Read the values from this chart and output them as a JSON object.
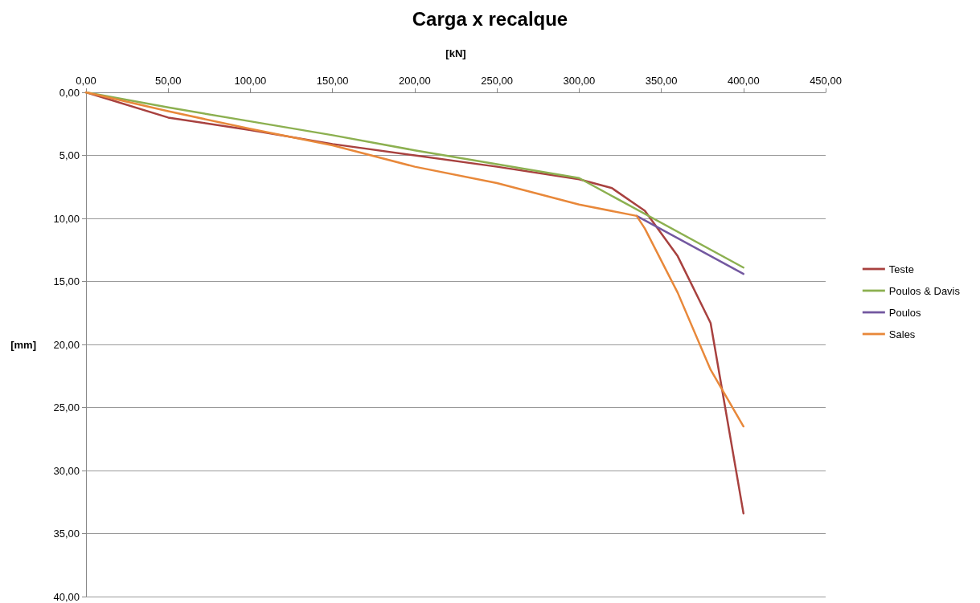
{
  "chart_data": {
    "type": "line",
    "title": "Carga x recalque",
    "xlabel": "[kN]",
    "ylabel": "[mm]",
    "x": [
      0,
      50,
      100,
      150,
      200,
      250,
      300,
      320,
      340,
      360,
      380,
      400
    ],
    "series": [
      {
        "name": "Teste",
        "color": "#a8413f",
        "values": [
          0,
          2.0,
          3.0,
          4.1,
          5.0,
          5.9,
          6.9,
          7.6,
          9.4,
          13.0,
          18.3,
          33.4
        ]
      },
      {
        "name": "Poulos & Davis",
        "color": "#8cb050",
        "x": [
          0,
          50,
          100,
          150,
          200,
          250,
          300,
          400
        ],
        "values": [
          0,
          1.2,
          2.3,
          3.4,
          4.6,
          5.7,
          6.8,
          13.9
        ]
      },
      {
        "name": "Poulos",
        "color": "#7358a0",
        "x": [
          335,
          400
        ],
        "values": [
          9.8,
          14.4
        ]
      },
      {
        "name": "Sales",
        "color": "#e8883a",
        "x": [
          0,
          50,
          100,
          150,
          200,
          250,
          300,
          335,
          340,
          360,
          380,
          400
        ],
        "values": [
          0,
          1.5,
          2.9,
          4.2,
          5.9,
          7.2,
          8.9,
          9.8,
          10.8,
          15.9,
          22.0,
          26.5
        ]
      }
    ],
    "xlim": [
      0,
      450
    ],
    "xticks": [
      {
        "value": 0,
        "label": "0,00"
      },
      {
        "value": 50,
        "label": "50,00"
      },
      {
        "value": 100,
        "label": "100,00"
      },
      {
        "value": 150,
        "label": "150,00"
      },
      {
        "value": 200,
        "label": "200,00"
      },
      {
        "value": 250,
        "label": "250,00"
      },
      {
        "value": 300,
        "label": "300,00"
      },
      {
        "value": 350,
        "label": "350,00"
      },
      {
        "value": 400,
        "label": "400,00"
      },
      {
        "value": 450,
        "label": "450,00"
      }
    ],
    "ylim": [
      40,
      0
    ],
    "yticks": [
      {
        "value": 0,
        "label": "0,00"
      },
      {
        "value": 5,
        "label": "5,00"
      },
      {
        "value": 10,
        "label": "10,00"
      },
      {
        "value": 15,
        "label": "15,00"
      },
      {
        "value": 20,
        "label": "20,00"
      },
      {
        "value": 25,
        "label": "25,00"
      },
      {
        "value": 30,
        "label": "30,00"
      },
      {
        "value": 35,
        "label": "35,00"
      },
      {
        "value": 40,
        "label": "40,00"
      }
    ],
    "grid": "y",
    "legend": "right",
    "marker": "none",
    "line_style": "solid"
  }
}
